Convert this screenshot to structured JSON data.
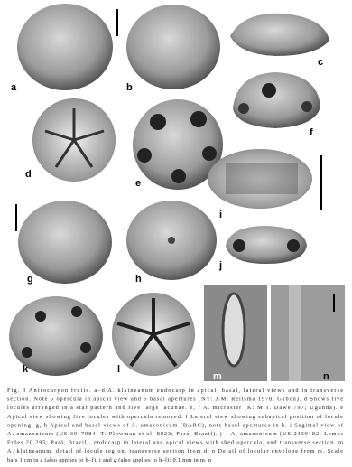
{
  "panels": {
    "labels": [
      "a",
      "b",
      "c",
      "d",
      "e",
      "f",
      "g",
      "h",
      "i",
      "j",
      "k",
      "l",
      "m",
      "n"
    ]
  },
  "caption": {
    "lines": [
      "Fig. 3 Antrocaryon fruits. a–d A. klaineanum endocarp in apical, basal, lateral views and in transverse",
      "section. Note 5 opercula in apical view and 5 basal apertures (NY: J.M. Reitsma 1978; Gabon). d Shows five",
      "locules arranged in a star pattern and five large lacunae. e, f A. micraster (K: M.T. Dawe 797; Uganda). e",
      "Apical view showing five locules with opercula removed. f Lateral view showing subapical position of locule",
      "opening. g, h Apical and basal views of A. amazonicum (BARC), note basal apertures in h. i Sagittal view of",
      "A. amazonicum (US 3017984: T. Plowman et al. 8823; Pará, Brazil). j–l A. amazonicum (US 2439182: Lemos",
      "Fróes 20,295; Pará, Brazil), endocarp in lateral and apical views with shed opercula, and transverse section. m",
      "A. klaineanum, detail of locule region, transverse section from d. n Detail of locular envelope from m. Scale",
      "bars 1 cm in a (also applies to b–f), i and g (also applies to h–l); 0.1 mm in m, n"
    ]
  }
}
